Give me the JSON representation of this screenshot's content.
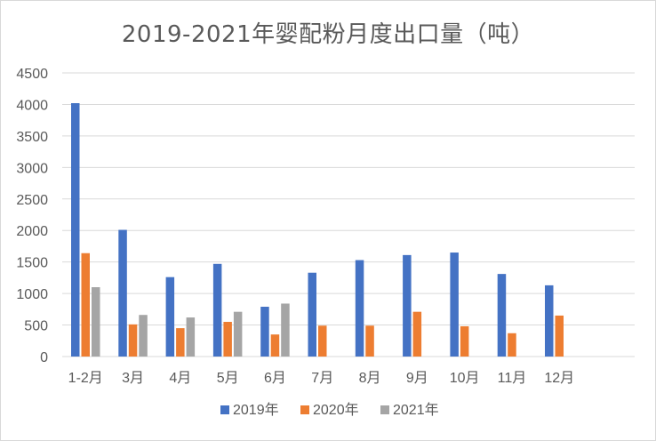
{
  "chart_data": {
    "type": "bar",
    "title": "2019-2021年婴配粉月度出口量（吨）",
    "xlabel": "",
    "ylabel": "",
    "ylim": [
      0,
      4500
    ],
    "yticks": [
      0,
      500,
      1000,
      1500,
      2000,
      2500,
      3000,
      3500,
      4000,
      4500
    ],
    "grid": true,
    "legend_position": "bottom",
    "categories": [
      "1-2月",
      "3月",
      "4月",
      "5月",
      "6月",
      "7月",
      "8月",
      "9月",
      "10月",
      "11月",
      "12月"
    ],
    "series": [
      {
        "name": "2019年",
        "color": "#4472C4",
        "values": [
          4020,
          2010,
          1260,
          1470,
          790,
          1330,
          1530,
          1610,
          1650,
          1310,
          1130
        ]
      },
      {
        "name": "2020年",
        "color": "#ED7D31",
        "values": [
          1640,
          510,
          450,
          550,
          350,
          490,
          490,
          710,
          480,
          370,
          650
        ]
      },
      {
        "name": "2021年",
        "color": "#A5A5A5",
        "values": [
          1100,
          660,
          620,
          710,
          840,
          null,
          null,
          null,
          null,
          null,
          null
        ]
      }
    ]
  }
}
